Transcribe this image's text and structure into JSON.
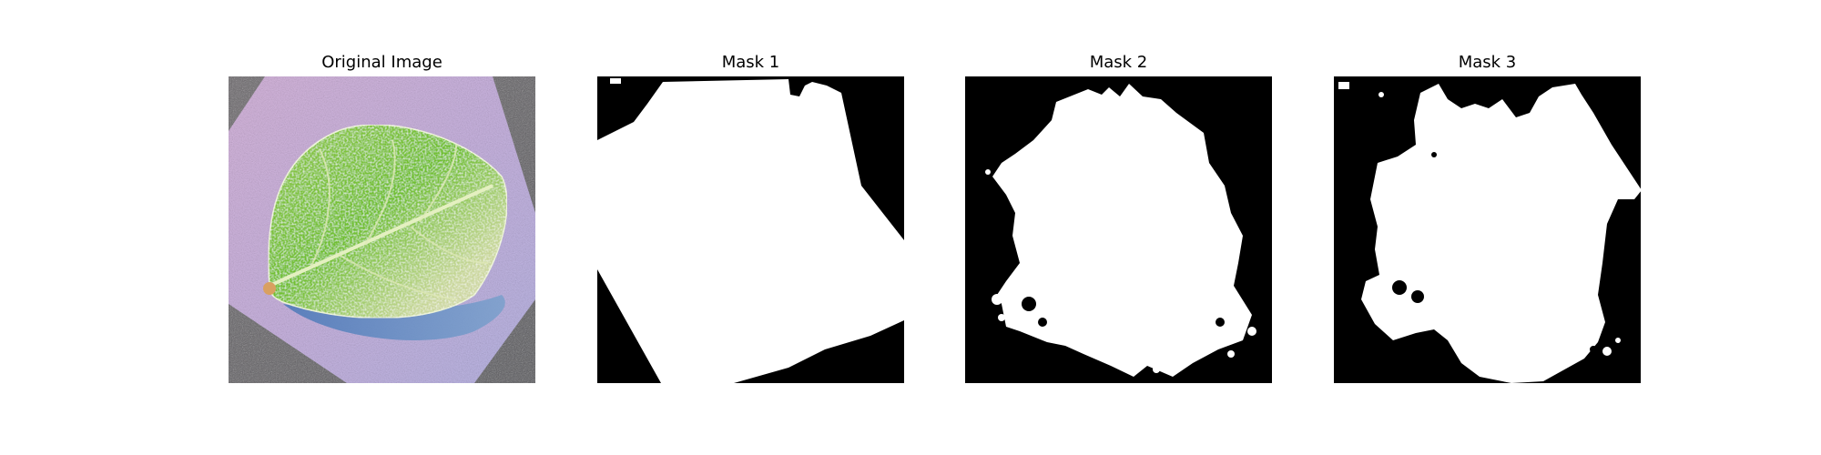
{
  "figure": {
    "panels": [
      {
        "title": "Original Image"
      },
      {
        "title": "Mask 1"
      },
      {
        "title": "Mask 2"
      },
      {
        "title": "Mask 3"
      }
    ]
  },
  "colors": {
    "mask_background": "#000000",
    "mask_foreground": "#ffffff",
    "page_background": "#ffffff"
  }
}
